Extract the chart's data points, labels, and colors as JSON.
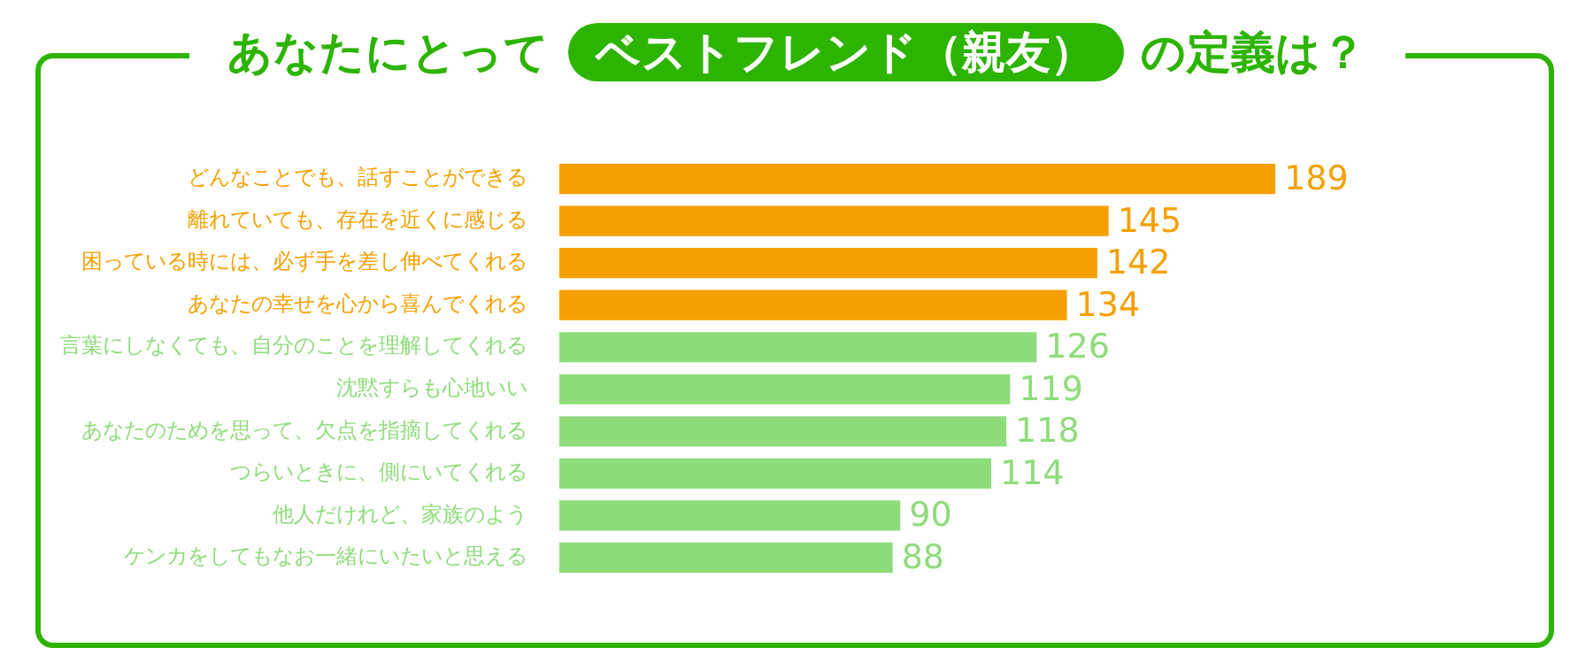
{
  "chart_data": {
    "type": "bar",
    "orientation": "horizontal",
    "title": "あなたにとって ベストフレンド（親友） の定義は？",
    "categories": [
      "どんなことでも、話すことができる",
      "離れていても、存在を近くに感じる",
      "困っている時には、必ず手を差し伸べてくれる",
      "あなたの幸せを心から喜んでくれる",
      "言葉にしなくても、自分のことを理解してくれる",
      "沈黙すらも心地いい",
      "あなたのためを思って、欠点を指摘してくれる",
      "つらいときに、側にいてくれる",
      "他人だけれど、家族のよう",
      "ケンカをしてもなお一緒にいたいと思える"
    ],
    "values": [
      189,
      145,
      142,
      134,
      126,
      119,
      118,
      114,
      90,
      88
    ],
    "colors": [
      "#f5a000",
      "#f5a000",
      "#f5a000",
      "#f5a000",
      "#8fdc7b",
      "#8fdc7b",
      "#8fdc7b",
      "#8fdc7b",
      "#8fdc7b",
      "#8fdc7b"
    ],
    "data_labels": true,
    "legend": false
  }
}
